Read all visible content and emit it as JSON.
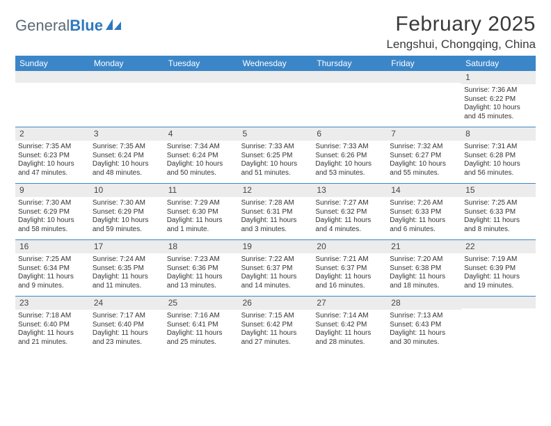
{
  "brand": {
    "part1": "General",
    "part2": "Blue"
  },
  "title": "February 2025",
  "location": "Lengshui, Chongqing, China",
  "colors": {
    "header_bg": "#3b86c8",
    "band_bg": "#ececec",
    "rule": "#3b86c8",
    "text": "#333333",
    "brand_gray": "#5a6a78",
    "brand_blue": "#2e78bd"
  },
  "days_of_week": [
    "Sunday",
    "Monday",
    "Tuesday",
    "Wednesday",
    "Thursday",
    "Friday",
    "Saturday"
  ],
  "weeks": [
    [
      {
        "n": "",
        "lines": []
      },
      {
        "n": "",
        "lines": []
      },
      {
        "n": "",
        "lines": []
      },
      {
        "n": "",
        "lines": []
      },
      {
        "n": "",
        "lines": []
      },
      {
        "n": "",
        "lines": []
      },
      {
        "n": "1",
        "lines": [
          "Sunrise: 7:36 AM",
          "Sunset: 6:22 PM",
          "Daylight: 10 hours and 45 minutes."
        ]
      }
    ],
    [
      {
        "n": "2",
        "lines": [
          "Sunrise: 7:35 AM",
          "Sunset: 6:23 PM",
          "Daylight: 10 hours and 47 minutes."
        ]
      },
      {
        "n": "3",
        "lines": [
          "Sunrise: 7:35 AM",
          "Sunset: 6:24 PM",
          "Daylight: 10 hours and 48 minutes."
        ]
      },
      {
        "n": "4",
        "lines": [
          "Sunrise: 7:34 AM",
          "Sunset: 6:24 PM",
          "Daylight: 10 hours and 50 minutes."
        ]
      },
      {
        "n": "5",
        "lines": [
          "Sunrise: 7:33 AM",
          "Sunset: 6:25 PM",
          "Daylight: 10 hours and 51 minutes."
        ]
      },
      {
        "n": "6",
        "lines": [
          "Sunrise: 7:33 AM",
          "Sunset: 6:26 PM",
          "Daylight: 10 hours and 53 minutes."
        ]
      },
      {
        "n": "7",
        "lines": [
          "Sunrise: 7:32 AM",
          "Sunset: 6:27 PM",
          "Daylight: 10 hours and 55 minutes."
        ]
      },
      {
        "n": "8",
        "lines": [
          "Sunrise: 7:31 AM",
          "Sunset: 6:28 PM",
          "Daylight: 10 hours and 56 minutes."
        ]
      }
    ],
    [
      {
        "n": "9",
        "lines": [
          "Sunrise: 7:30 AM",
          "Sunset: 6:29 PM",
          "Daylight: 10 hours and 58 minutes."
        ]
      },
      {
        "n": "10",
        "lines": [
          "Sunrise: 7:30 AM",
          "Sunset: 6:29 PM",
          "Daylight: 10 hours and 59 minutes."
        ]
      },
      {
        "n": "11",
        "lines": [
          "Sunrise: 7:29 AM",
          "Sunset: 6:30 PM",
          "Daylight: 11 hours and 1 minute."
        ]
      },
      {
        "n": "12",
        "lines": [
          "Sunrise: 7:28 AM",
          "Sunset: 6:31 PM",
          "Daylight: 11 hours and 3 minutes."
        ]
      },
      {
        "n": "13",
        "lines": [
          "Sunrise: 7:27 AM",
          "Sunset: 6:32 PM",
          "Daylight: 11 hours and 4 minutes."
        ]
      },
      {
        "n": "14",
        "lines": [
          "Sunrise: 7:26 AM",
          "Sunset: 6:33 PM",
          "Daylight: 11 hours and 6 minutes."
        ]
      },
      {
        "n": "15",
        "lines": [
          "Sunrise: 7:25 AM",
          "Sunset: 6:33 PM",
          "Daylight: 11 hours and 8 minutes."
        ]
      }
    ],
    [
      {
        "n": "16",
        "lines": [
          "Sunrise: 7:25 AM",
          "Sunset: 6:34 PM",
          "Daylight: 11 hours and 9 minutes."
        ]
      },
      {
        "n": "17",
        "lines": [
          "Sunrise: 7:24 AM",
          "Sunset: 6:35 PM",
          "Daylight: 11 hours and 11 minutes."
        ]
      },
      {
        "n": "18",
        "lines": [
          "Sunrise: 7:23 AM",
          "Sunset: 6:36 PM",
          "Daylight: 11 hours and 13 minutes."
        ]
      },
      {
        "n": "19",
        "lines": [
          "Sunrise: 7:22 AM",
          "Sunset: 6:37 PM",
          "Daylight: 11 hours and 14 minutes."
        ]
      },
      {
        "n": "20",
        "lines": [
          "Sunrise: 7:21 AM",
          "Sunset: 6:37 PM",
          "Daylight: 11 hours and 16 minutes."
        ]
      },
      {
        "n": "21",
        "lines": [
          "Sunrise: 7:20 AM",
          "Sunset: 6:38 PM",
          "Daylight: 11 hours and 18 minutes."
        ]
      },
      {
        "n": "22",
        "lines": [
          "Sunrise: 7:19 AM",
          "Sunset: 6:39 PM",
          "Daylight: 11 hours and 19 minutes."
        ]
      }
    ],
    [
      {
        "n": "23",
        "lines": [
          "Sunrise: 7:18 AM",
          "Sunset: 6:40 PM",
          "Daylight: 11 hours and 21 minutes."
        ]
      },
      {
        "n": "24",
        "lines": [
          "Sunrise: 7:17 AM",
          "Sunset: 6:40 PM",
          "Daylight: 11 hours and 23 minutes."
        ]
      },
      {
        "n": "25",
        "lines": [
          "Sunrise: 7:16 AM",
          "Sunset: 6:41 PM",
          "Daylight: 11 hours and 25 minutes."
        ]
      },
      {
        "n": "26",
        "lines": [
          "Sunrise: 7:15 AM",
          "Sunset: 6:42 PM",
          "Daylight: 11 hours and 27 minutes."
        ]
      },
      {
        "n": "27",
        "lines": [
          "Sunrise: 7:14 AM",
          "Sunset: 6:42 PM",
          "Daylight: 11 hours and 28 minutes."
        ]
      },
      {
        "n": "28",
        "lines": [
          "Sunrise: 7:13 AM",
          "Sunset: 6:43 PM",
          "Daylight: 11 hours and 30 minutes."
        ]
      },
      {
        "n": "",
        "lines": []
      }
    ]
  ]
}
